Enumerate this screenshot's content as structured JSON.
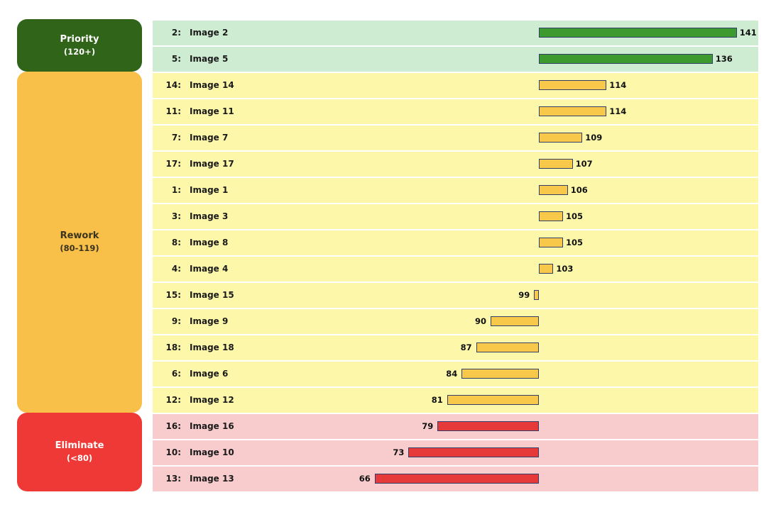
{
  "chart_data": {
    "type": "bar",
    "orientation": "horizontal",
    "baseline": 100,
    "xlim": [
      52,
      154
    ],
    "groups": [
      {
        "title": "Priority",
        "range": "(120+)",
        "fill": "#306419",
        "text_color": "#ffffff",
        "row_bg": "#ceecd1",
        "bar_color": "#3c9a2f"
      },
      {
        "title": "Rework",
        "range": "(80-119)",
        "fill": "#f8c048",
        "text_color": "#3a3320",
        "row_bg": "#fdf8a9",
        "bar_color": "#f8c84a"
      },
      {
        "title": "Eliminate",
        "range": "(<80)",
        "fill": "#ef3936",
        "text_color": "#ffffff",
        "row_bg": "#f8cbcc",
        "bar_color": "#e63a3a"
      }
    ],
    "rows": [
      {
        "rank": "2:",
        "name": "Image 2",
        "value": 141,
        "group": 0
      },
      {
        "rank": "5:",
        "name": "Image 5",
        "value": 136,
        "group": 0
      },
      {
        "rank": "14:",
        "name": "Image 14",
        "value": 114,
        "group": 1
      },
      {
        "rank": "11:",
        "name": "Image 11",
        "value": 114,
        "group": 1
      },
      {
        "rank": "7:",
        "name": "Image 7",
        "value": 109,
        "group": 1
      },
      {
        "rank": "17:",
        "name": "Image 17",
        "value": 107,
        "group": 1
      },
      {
        "rank": "1:",
        "name": "Image 1",
        "value": 106,
        "group": 1
      },
      {
        "rank": "3:",
        "name": "Image 3",
        "value": 105,
        "group": 1
      },
      {
        "rank": "8:",
        "name": "Image 8",
        "value": 105,
        "group": 1
      },
      {
        "rank": "4:",
        "name": "Image 4",
        "value": 103,
        "group": 1
      },
      {
        "rank": "15:",
        "name": "Image 15",
        "value": 99,
        "group": 1
      },
      {
        "rank": "9:",
        "name": "Image 9",
        "value": 90,
        "group": 1
      },
      {
        "rank": "18:",
        "name": "Image 18",
        "value": 87,
        "group": 1
      },
      {
        "rank": "6:",
        "name": "Image 6",
        "value": 84,
        "group": 1
      },
      {
        "rank": "12:",
        "name": "Image 12",
        "value": 81,
        "group": 1
      },
      {
        "rank": "16:",
        "name": "Image 16",
        "value": 79,
        "group": 2
      },
      {
        "rank": "10:",
        "name": "Image 10",
        "value": 73,
        "group": 2
      },
      {
        "rank": "13:",
        "name": "Image 13",
        "value": 66,
        "group": 2
      }
    ]
  }
}
